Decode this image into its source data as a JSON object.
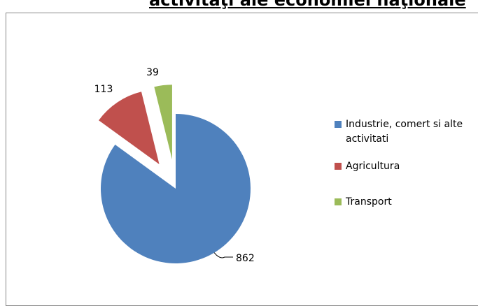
{
  "chart_data": {
    "type": "pie",
    "title": "activitaţi ale economiei naţionale",
    "categories": [
      "Industrie, comert si alte activitati",
      "Agricultura",
      "Transport"
    ],
    "values": [
      862,
      113,
      39
    ],
    "colors": [
      "#4f81bd",
      "#c0504d",
      "#9bbb59"
    ],
    "exploded": [
      false,
      true,
      true
    ],
    "legend": "right"
  }
}
